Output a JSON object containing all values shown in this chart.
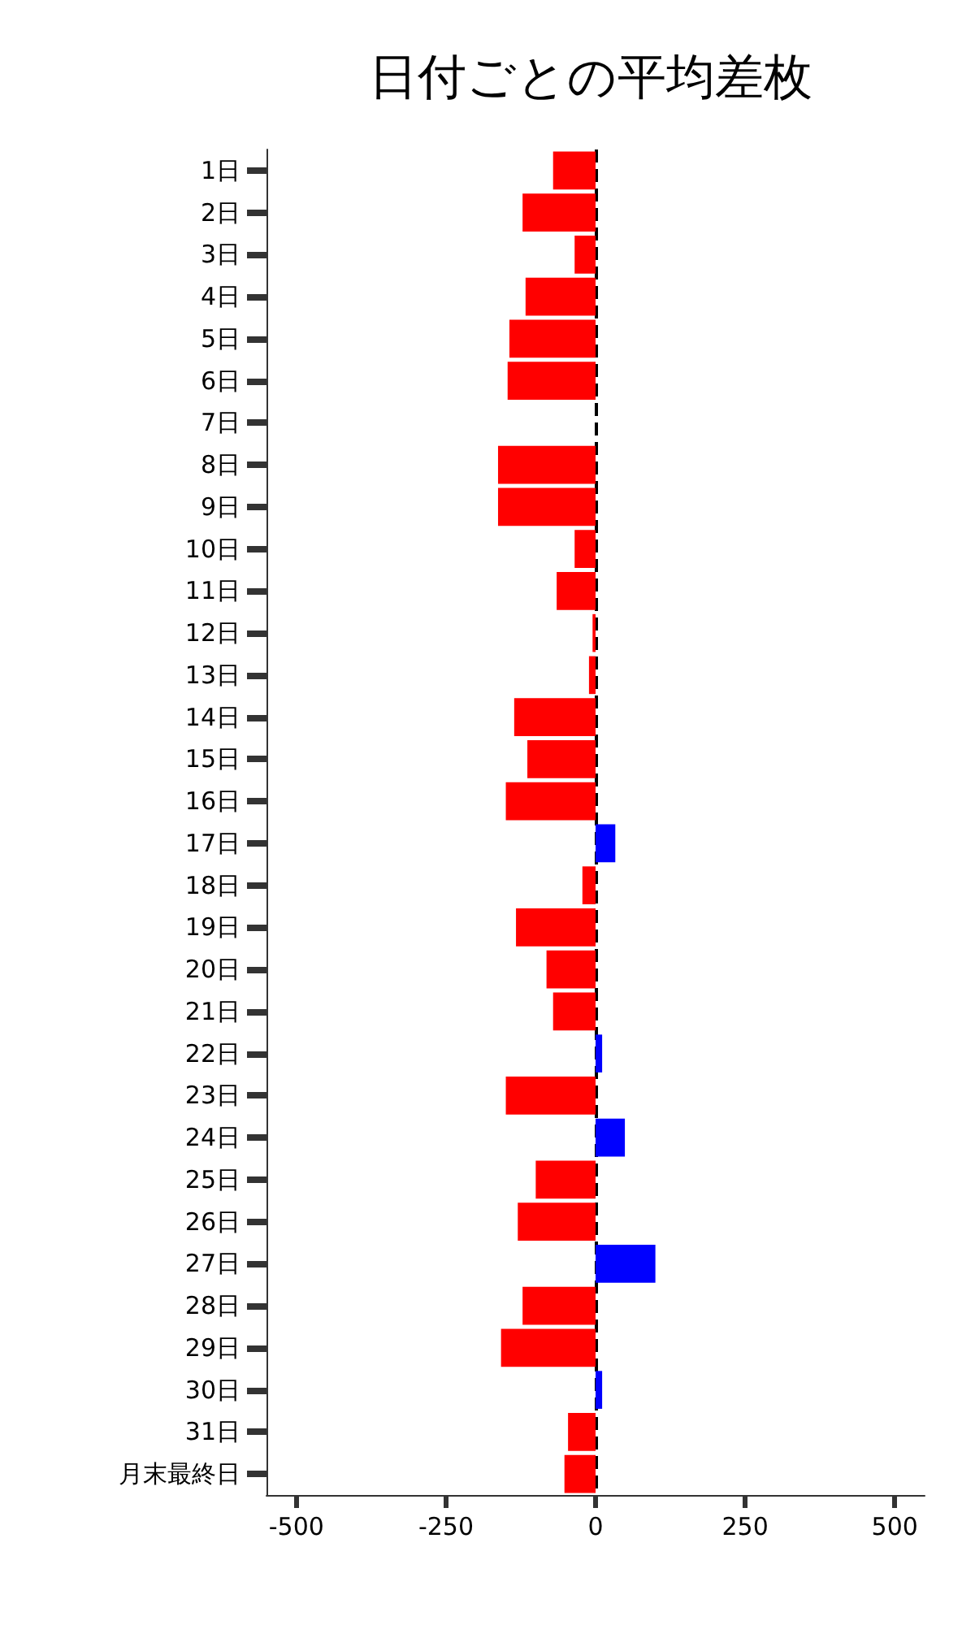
{
  "chart_data": {
    "type": "bar",
    "orientation": "horizontal",
    "title": "日付ごとの平均差枚",
    "categories": [
      "1日",
      "2日",
      "3日",
      "4日",
      "5日",
      "6日",
      "7日",
      "8日",
      "9日",
      "10日",
      "11日",
      "12日",
      "13日",
      "14日",
      "15日",
      "16日",
      "17日",
      "18日",
      "19日",
      "20日",
      "21日",
      "22日",
      "23日",
      "24日",
      "25日",
      "26日",
      "27日",
      "28日",
      "29日",
      "30日",
      "31日",
      "月末最終日"
    ],
    "values": [
      -71,
      -122,
      -35,
      -117,
      -144,
      -147,
      0,
      -163,
      -163,
      -35,
      -65,
      -5,
      -11,
      -136,
      -114,
      -150,
      33,
      -22,
      -133,
      -82,
      -71,
      11,
      -150,
      49,
      -100,
      -130,
      100,
      -122,
      -158,
      11,
      -46,
      -52
    ],
    "colors": [
      "#ff0000",
      "#ff0000",
      "#ff0000",
      "#ff0000",
      "#ff0000",
      "#ff0000",
      "#ff0000",
      "#ff0000",
      "#ff0000",
      "#ff0000",
      "#ff0000",
      "#ff0000",
      "#ff0000",
      "#ff0000",
      "#ff0000",
      "#ff0000",
      "#0000ff",
      "#ff0000",
      "#ff0000",
      "#ff0000",
      "#ff0000",
      "#0000ff",
      "#ff0000",
      "#0000ff",
      "#ff0000",
      "#ff0000",
      "#0000ff",
      "#ff0000",
      "#ff0000",
      "#0000ff",
      "#ff0000",
      "#ff0000"
    ],
    "xlim": [
      -550,
      550
    ],
    "xticks": [
      -500,
      -250,
      0,
      250,
      500
    ],
    "ref_lines": [
      {
        "axis": "x",
        "value": 0,
        "color": "#000000",
        "line_style": "dashed"
      }
    ],
    "grid": false
  }
}
